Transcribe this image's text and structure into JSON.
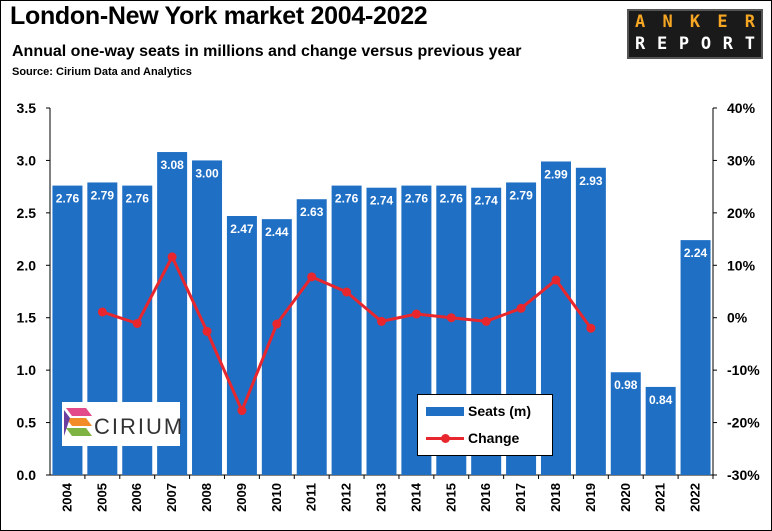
{
  "header": {
    "title": "London-New York market 2004-2022",
    "subtitle": "Annual one-way seats in millions and change versus previous year",
    "source": "Source: Cirium Data and Analytics"
  },
  "logos": {
    "anker_top": [
      "A",
      "N",
      "K",
      "E",
      "R"
    ],
    "anker_bottom": [
      "R",
      "E",
      "P",
      "O",
      "R",
      "T"
    ],
    "cirium": "CIRIUM"
  },
  "legend": {
    "seats_label": "Seats (m)",
    "change_label": "Change"
  },
  "colors": {
    "bar": "#1f6fc5",
    "line": "#e8262d",
    "bar_label": "#ffffff"
  },
  "chart_data": {
    "type": "bar",
    "categories": [
      "2004",
      "2005",
      "2006",
      "2007",
      "2008",
      "2009",
      "2010",
      "2011",
      "2012",
      "2013",
      "2014",
      "2015",
      "2016",
      "2017",
      "2018",
      "2019",
      "2020",
      "2021",
      "2022"
    ],
    "series": [
      {
        "name": "Seats (m)",
        "type": "bar",
        "axis": "left",
        "values": [
          2.76,
          2.79,
          2.76,
          3.08,
          3.0,
          2.47,
          2.44,
          2.63,
          2.76,
          2.74,
          2.76,
          2.76,
          2.74,
          2.79,
          2.99,
          2.93,
          0.98,
          0.84,
          2.24
        ],
        "labels": [
          "2.76",
          "2.79",
          "2.76",
          "3.08",
          "3.00",
          "2.47",
          "2.44",
          "2.63",
          "2.76",
          "2.74",
          "2.76",
          "2.76",
          "2.74",
          "2.79",
          "2.99",
          "2.93",
          "0.98",
          "0.84",
          "2.24"
        ]
      },
      {
        "name": "Change",
        "type": "line",
        "axis": "right",
        "values": [
          null,
          1.1,
          -1.1,
          11.6,
          -2.6,
          -17.7,
          -1.2,
          7.8,
          4.9,
          -0.7,
          0.7,
          0.0,
          -0.7,
          1.8,
          7.2,
          -2.0,
          null,
          null,
          null
        ]
      }
    ],
    "left_axis": {
      "min": 0,
      "max": 3.5,
      "ticks": [
        "0.0",
        "0.5",
        "1.0",
        "1.5",
        "2.0",
        "2.5",
        "3.0",
        "3.5"
      ]
    },
    "right_axis": {
      "min": -30,
      "max": 40,
      "ticks": [
        "-30%",
        "-20%",
        "-10%",
        "0%",
        "10%",
        "20%",
        "30%",
        "40%"
      ]
    },
    "grid": false,
    "legend_position": "bottom-center"
  }
}
